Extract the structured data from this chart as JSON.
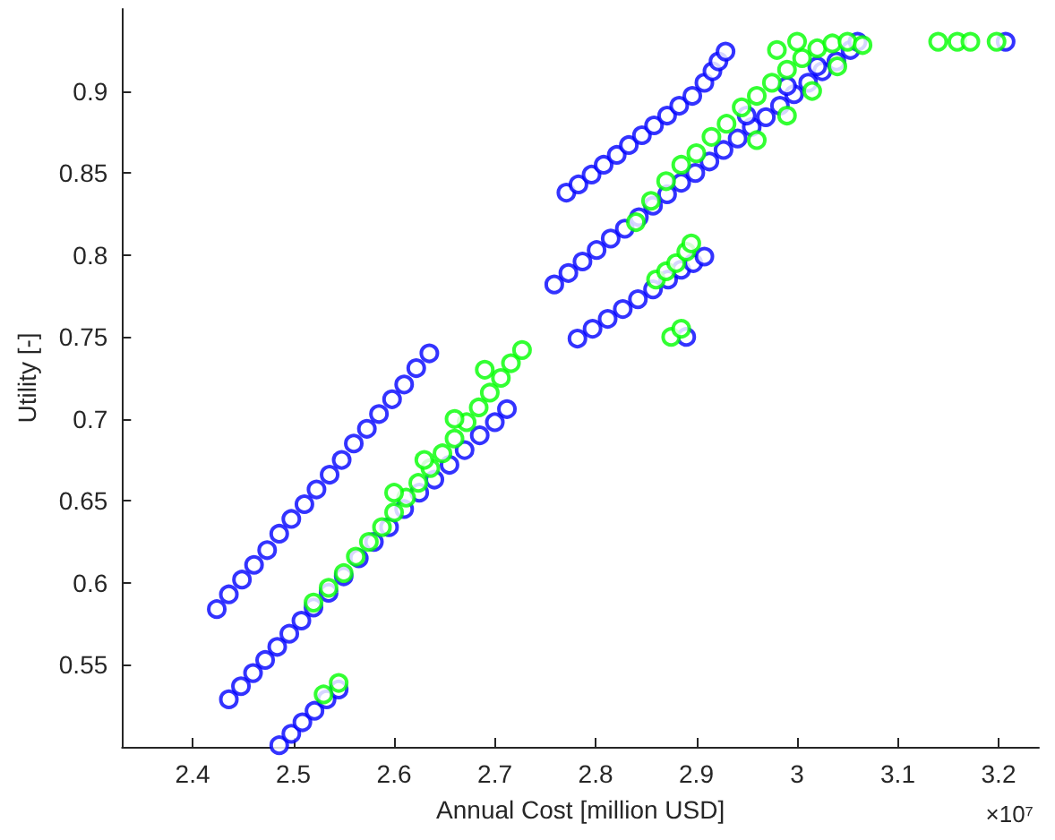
{
  "chart_data": {
    "type": "scatter",
    "xlabel": "Annual Cost [million USD]",
    "ylabel": "Utility [-]",
    "annotations": [
      "×10⁷"
    ],
    "xlim": [
      2.33,
      3.24
    ],
    "xticks": [
      2.4,
      2.5,
      2.6,
      2.7,
      2.8,
      2.9,
      3,
      3.1,
      3.2
    ],
    "ylim": [
      0.5,
      0.95
    ],
    "yticks": [
      0.55,
      0.6,
      0.65,
      0.7,
      0.75,
      0.8,
      0.85,
      0.9
    ],
    "grid": false,
    "marker": "circle",
    "series": [
      {
        "color": "#0000ff",
        "x": [
          2.424,
          2.436,
          2.449,
          2.461,
          2.474,
          2.486,
          2.498,
          2.511,
          2.523,
          2.536,
          2.548,
          2.56,
          2.573,
          2.585,
          2.598,
          2.61,
          2.622,
          2.635,
          2.486,
          2.498,
          2.509,
          2.521,
          2.533,
          2.545,
          2.436,
          2.448,
          2.46,
          2.472,
          2.484,
          2.496,
          2.508,
          2.52,
          2.535,
          2.55,
          2.565,
          2.58,
          2.595,
          2.61,
          2.625,
          2.64,
          2.655,
          2.67,
          2.685,
          2.7,
          2.712,
          2.771,
          2.783,
          2.796,
          2.808,
          2.821,
          2.833,
          2.846,
          2.858,
          2.871,
          2.883,
          2.896,
          2.908,
          2.916,
          2.922,
          2.929,
          2.759,
          2.773,
          2.787,
          2.801,
          2.815,
          2.829,
          2.843,
          2.857,
          2.871,
          2.885,
          2.899,
          2.913,
          2.927,
          2.941,
          2.955,
          2.969,
          2.983,
          2.997,
          3.011,
          3.025,
          3.039,
          3.053,
          3.06,
          2.782,
          2.797,
          2.812,
          2.827,
          2.842,
          2.857,
          2.872,
          2.885,
          2.897,
          2.908,
          2.89,
          3.207,
          2.95,
          2.99,
          3.02
        ],
        "values": [
          0.584,
          0.593,
          0.602,
          0.611,
          0.62,
          0.63,
          0.639,
          0.648,
          0.657,
          0.666,
          0.675,
          0.685,
          0.694,
          0.703,
          0.712,
          0.721,
          0.731,
          0.74,
          0.501,
          0.508,
          0.515,
          0.522,
          0.529,
          0.535,
          0.529,
          0.537,
          0.545,
          0.553,
          0.561,
          0.569,
          0.577,
          0.585,
          0.594,
          0.604,
          0.615,
          0.625,
          0.634,
          0.645,
          0.655,
          0.663,
          0.672,
          0.681,
          0.69,
          0.698,
          0.706,
          0.838,
          0.843,
          0.849,
          0.855,
          0.861,
          0.867,
          0.873,
          0.879,
          0.885,
          0.891,
          0.897,
          0.905,
          0.912,
          0.918,
          0.924,
          0.782,
          0.789,
          0.796,
          0.803,
          0.81,
          0.816,
          0.823,
          0.83,
          0.837,
          0.844,
          0.85,
          0.857,
          0.864,
          0.871,
          0.878,
          0.884,
          0.891,
          0.898,
          0.905,
          0.912,
          0.918,
          0.925,
          0.93,
          0.749,
          0.755,
          0.761,
          0.767,
          0.773,
          0.779,
          0.785,
          0.791,
          0.795,
          0.799,
          0.75,
          0.93,
          0.885,
          0.903,
          0.915
        ]
      },
      {
        "color": "#00ff00",
        "x": [
          2.53,
          2.545,
          2.52,
          2.535,
          2.55,
          2.562,
          2.575,
          2.588,
          2.6,
          2.612,
          2.624,
          2.636,
          2.648,
          2.66,
          2.672,
          2.684,
          2.695,
          2.706,
          2.716,
          2.727,
          2.6,
          2.63,
          2.66,
          2.69,
          2.84,
          2.855,
          2.87,
          2.885,
          2.9,
          2.915,
          2.93,
          2.945,
          2.96,
          2.975,
          2.99,
          3.005,
          3.02,
          3.035,
          3.05,
          3.065,
          2.96,
          2.99,
          3.015,
          3.04,
          2.98,
          3.0,
          2.86,
          2.87,
          2.88,
          2.89,
          2.895,
          2.875,
          2.885,
          3.14,
          3.159,
          3.172,
          3.198
        ],
        "values": [
          0.532,
          0.539,
          0.588,
          0.597,
          0.606,
          0.616,
          0.625,
          0.634,
          0.643,
          0.652,
          0.661,
          0.67,
          0.679,
          0.688,
          0.698,
          0.707,
          0.716,
          0.725,
          0.734,
          0.742,
          0.655,
          0.675,
          0.7,
          0.73,
          0.82,
          0.833,
          0.845,
          0.855,
          0.862,
          0.872,
          0.88,
          0.89,
          0.897,
          0.905,
          0.913,
          0.92,
          0.926,
          0.929,
          0.93,
          0.928,
          0.87,
          0.885,
          0.9,
          0.915,
          0.925,
          0.93,
          0.785,
          0.79,
          0.795,
          0.802,
          0.807,
          0.75,
          0.755,
          0.93,
          0.93,
          0.93,
          0.93
        ]
      }
    ]
  }
}
